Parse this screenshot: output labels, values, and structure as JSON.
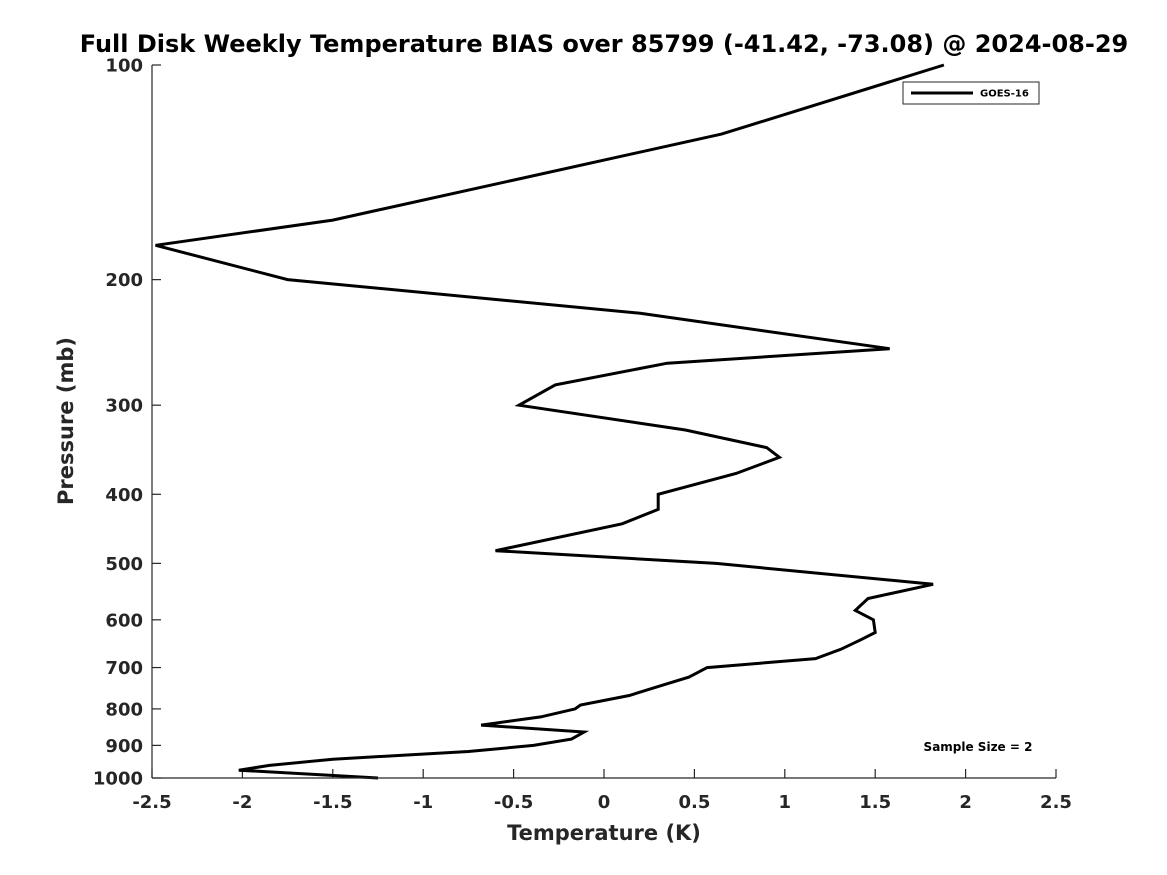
{
  "chart_data": {
    "type": "line",
    "title": "Full Disk Weekly Temperature BIAS over 85799 (-41.42, -73.08) @ 2024-08-29",
    "xlabel": "Temperature (K)",
    "ylabel": "Pressure (mb)",
    "xlim": [
      -2.5,
      2.5
    ],
    "ylim": [
      100,
      1000
    ],
    "yscale": "log",
    "xticks": [
      -2.5,
      -2,
      -1.5,
      -1,
      -0.5,
      0,
      0.5,
      1,
      1.5,
      2,
      2.5
    ],
    "xtick_labels": [
      "-2.5",
      "-2",
      "-1.5",
      "-1",
      "-0.5",
      "0",
      "0.5",
      "1",
      "1.5",
      "2",
      "2.5"
    ],
    "yticks": [
      100,
      200,
      300,
      400,
      500,
      600,
      700,
      800,
      900,
      1000
    ],
    "ytick_labels": [
      "100",
      "200",
      "300",
      "400",
      "500",
      "600",
      "700",
      "800",
      "900",
      "1000"
    ],
    "legend": {
      "position": "top-right",
      "entries": [
        "GOES-16"
      ]
    },
    "annotation": "Sample Size = 2",
    "series": [
      {
        "name": "GOES-16",
        "color": "#000000",
        "points": [
          [
            1.88,
            100
          ],
          [
            0.65,
            125
          ],
          [
            -0.5,
            145
          ],
          [
            -1.5,
            165
          ],
          [
            -2.48,
            179
          ],
          [
            -1.75,
            200
          ],
          [
            0.2,
            223
          ],
          [
            1.58,
            250
          ],
          [
            0.35,
            262
          ],
          [
            -0.27,
            281
          ],
          [
            -0.47,
            300
          ],
          [
            0.45,
            325
          ],
          [
            0.9,
            344
          ],
          [
            0.97,
            355
          ],
          [
            0.73,
            374
          ],
          [
            0.3,
            400
          ],
          [
            0.3,
            420
          ],
          [
            0.1,
            440
          ],
          [
            -0.6,
            480
          ],
          [
            0.62,
            500
          ],
          [
            1.82,
            535
          ],
          [
            1.46,
            560
          ],
          [
            1.39,
            582
          ],
          [
            1.49,
            600
          ],
          [
            1.5,
            625
          ],
          [
            1.42,
            640
          ],
          [
            1.31,
            660
          ],
          [
            1.17,
            680
          ],
          [
            0.57,
            700
          ],
          [
            0.47,
            722
          ],
          [
            0.33,
            740
          ],
          [
            0.14,
            766
          ],
          [
            -0.13,
            790
          ],
          [
            -0.16,
            800
          ],
          [
            -0.35,
            821
          ],
          [
            -0.68,
            843
          ],
          [
            -0.11,
            862
          ],
          [
            -0.18,
            882
          ],
          [
            -0.39,
            900
          ],
          [
            -0.75,
            918
          ],
          [
            -1.5,
            941
          ],
          [
            -1.85,
            960
          ],
          [
            -2.02,
            975
          ],
          [
            -1.25,
            1000
          ]
        ]
      }
    ]
  }
}
